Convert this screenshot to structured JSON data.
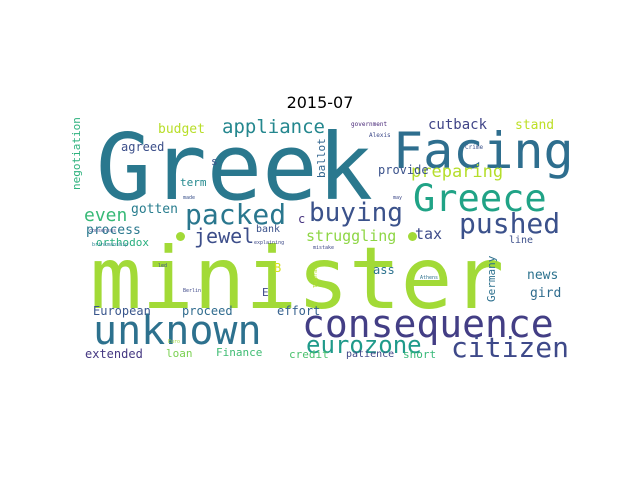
{
  "title": "2015-07",
  "words": [
    {
      "text": "minister",
      "color": "#a2da37"
    },
    {
      "text": "Greek",
      "color": "#2a788e"
    },
    {
      "text": "Facing",
      "color": "#2e6e8e"
    },
    {
      "text": "consequence",
      "color": "#433e85"
    },
    {
      "text": "unknown",
      "color": "#2d718e"
    },
    {
      "text": "Greece",
      "color": "#20a386"
    },
    {
      "text": "pushed",
      "color": "#3b518b"
    },
    {
      "text": "citizen",
      "color": "#3e4989"
    },
    {
      "text": "packed",
      "color": "#2a778e"
    },
    {
      "text": "buying",
      "color": "#3b528b"
    },
    {
      "text": "eurozone",
      "color": "#1f9a8a"
    },
    {
      "text": "appliance",
      "color": "#24878e"
    },
    {
      "text": "jewel",
      "color": "#3d4e8a"
    },
    {
      "text": "even",
      "color": "#38b977"
    },
    {
      "text": "preparing",
      "color": "#b5de2b"
    },
    {
      "text": "struggling",
      "color": "#8ed645"
    },
    {
      "text": "cutback",
      "color": "#404588"
    },
    {
      "text": "budget",
      "color": "#b8de29"
    },
    {
      "text": "stand",
      "color": "#bddf26"
    },
    {
      "text": "process",
      "color": "#2a788e"
    },
    {
      "text": "tax",
      "color": "#3e4c8a"
    },
    {
      "text": "gotten",
      "color": "#287d8e"
    },
    {
      "text": "agreed",
      "color": "#3c4f8a"
    },
    {
      "text": "orthodox",
      "color": "#29af7f"
    },
    {
      "text": "provide",
      "color": "#3b528b"
    },
    {
      "text": "news",
      "color": "#2c728e"
    },
    {
      "text": "ass",
      "color": "#2c728e"
    },
    {
      "text": "gird",
      "color": "#2f6c8e"
    },
    {
      "text": "European",
      "color": "#39568c"
    },
    {
      "text": "proceed",
      "color": "#2f6b8e"
    },
    {
      "text": "effort",
      "color": "#35608d"
    },
    {
      "text": "extended",
      "color": "#453882"
    },
    {
      "text": "loan",
      "color": "#7ad151"
    },
    {
      "text": "Finance",
      "color": "#3fbc73"
    },
    {
      "text": "credit",
      "color": "#4ac16d"
    },
    {
      "text": "patience",
      "color": "#3f4788"
    },
    {
      "text": "short",
      "color": "#37b878"
    },
    {
      "text": "negotiation",
      "color": "#2db27d"
    },
    {
      "text": "ballot",
      "color": "#32658e"
    },
    {
      "text": "Germany",
      "color": "#2d708e"
    },
    {
      "text": "term",
      "color": "#23898e"
    },
    {
      "text": "bank",
      "color": "#3b528b"
    },
    {
      "text": "line",
      "color": "#3c4f8a"
    },
    {
      "text": "E",
      "color": "#3e4989"
    },
    {
      "text": "B",
      "color": "#d2e21b"
    },
    {
      "text": "c",
      "color": "#46337f"
    },
    {
      "text": "s",
      "color": "#3a538b"
    },
    {
      "text": "government",
      "color": "#482878"
    },
    {
      "text": "Alexis",
      "color": "#3e4a89"
    },
    {
      "text": "Crime",
      "color": "#3b528b"
    },
    {
      "text": "consensus",
      "color": "#3f4889"
    },
    {
      "text": "brinkmanship",
      "color": "#277f8e"
    },
    {
      "text": "made",
      "color": "#3b528b"
    },
    {
      "text": "explaining",
      "color": "#3e4a89"
    },
    {
      "text": "mistake",
      "color": "#3f4788"
    },
    {
      "text": "Athens",
      "color": "#2d708e"
    },
    {
      "text": "Berlin",
      "color": "#3e4989"
    },
    {
      "text": "Tsipras",
      "color": "#b5de2b"
    },
    {
      "text": "may",
      "color": "#3e4989"
    },
    {
      "text": "led",
      "color": "#3b528b"
    },
    {
      "text": "Euro",
      "color": "#9fda3a"
    }
  ]
}
